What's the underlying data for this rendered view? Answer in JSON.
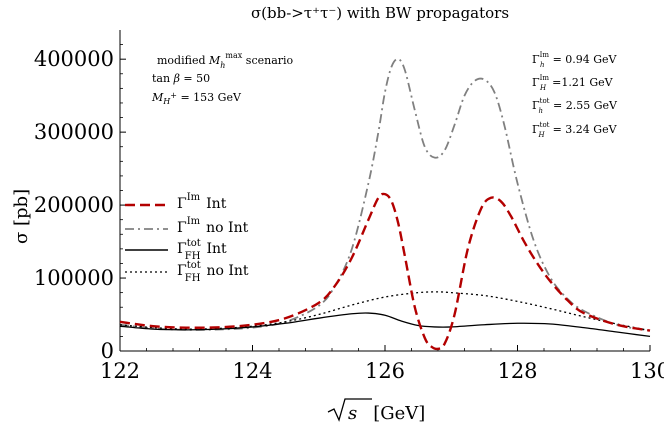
{
  "chart_data": {
    "type": "line",
    "title": "σ(bb->τ⁺τ⁻) with BW propagators",
    "xlabel": "√s [GeV]",
    "ylabel": "σ [pb]",
    "xlim": [
      122,
      130
    ],
    "ylim": [
      0,
      440000
    ],
    "x_ticks": [
      "122",
      "124",
      "126",
      "128",
      "130"
    ],
    "y_ticks": [
      "0",
      "100000",
      "200000",
      "300000",
      "400000"
    ],
    "x_tick_values": [
      122,
      124,
      126,
      128,
      130
    ],
    "y_tick_values": [
      0,
      100000,
      200000,
      300000,
      400000
    ],
    "annotations_left": {
      "scenario": "modified M_h^max scenario",
      "tan_beta": "tan β = 50",
      "mass": "M_H+ = 153 GeV"
    },
    "annotations_right": [
      "Γ_h^Im = 0.94 GeV",
      "Γ_H^Im = 1.21 GeV",
      "Γ_h^tot = 2.55 GeV",
      "Γ_H^tot = 3.24 GeV"
    ],
    "series": [
      {
        "name": "Γ^Im Int",
        "color": "#b30000",
        "dash": "long-dash",
        "x": [
          122,
          122.5,
          123,
          123.5,
          124,
          124.5,
          125,
          125.25,
          125.5,
          125.75,
          125.9,
          126.0,
          126.1,
          126.2,
          126.3,
          126.45,
          126.6,
          126.7,
          126.8,
          126.9,
          127.05,
          127.25,
          127.45,
          127.6,
          127.75,
          127.9,
          128.1,
          128.3,
          128.5,
          128.75,
          129,
          129.5,
          130
        ],
        "values": [
          40000,
          34000,
          32000,
          32500,
          36000,
          45000,
          66000,
          90000,
          128000,
          180000,
          210000,
          215000,
          205000,
          175000,
          130000,
          60000,
          18000,
          6000,
          3000,
          10000,
          50000,
          140000,
          195000,
          210000,
          205000,
          185000,
          150000,
          120000,
          95000,
          70000,
          52000,
          36000,
          28000
        ]
      },
      {
        "name": "Γ^Im no Int",
        "color": "#808080",
        "dash": "dash-dot",
        "x": [
          122,
          122.5,
          123,
          123.5,
          124,
          124.5,
          125,
          125.25,
          125.5,
          125.75,
          125.9,
          126.0,
          126.1,
          126.2,
          126.3,
          126.45,
          126.6,
          126.75,
          126.9,
          127.05,
          127.2,
          127.35,
          127.5,
          127.65,
          127.8,
          128.0,
          128.25,
          128.5,
          128.75,
          129,
          129.5,
          130
        ],
        "values": [
          36000,
          31000,
          29000,
          29500,
          32000,
          40000,
          62000,
          90000,
          140000,
          230000,
          300000,
          355000,
          390000,
          400000,
          385000,
          330000,
          280000,
          265000,
          275000,
          310000,
          350000,
          370000,
          372000,
          355000,
          310000,
          230000,
          150000,
          100000,
          72000,
          55000,
          36000,
          28000
        ]
      },
      {
        "name": "Γ_FH^tot Int",
        "color": "#000000",
        "dash": "solid",
        "x": [
          122,
          122.5,
          123,
          123.5,
          124,
          124.5,
          125,
          125.5,
          125.75,
          126.0,
          126.25,
          126.5,
          126.75,
          127,
          127.5,
          128,
          128.5,
          129,
          129.5,
          130
        ],
        "values": [
          34000,
          30000,
          29000,
          30000,
          33000,
          38000,
          45000,
          51000,
          52000,
          49000,
          41000,
          35000,
          33000,
          33000,
          36000,
          38000,
          37000,
          32000,
          26000,
          20000
        ]
      },
      {
        "name": "Γ_FH^tot no Int",
        "color": "#000000",
        "dash": "dotted",
        "x": [
          122,
          122.5,
          123,
          123.5,
          124,
          124.5,
          125,
          125.5,
          126,
          126.5,
          126.8,
          127,
          127.5,
          128,
          128.5,
          129,
          129.5,
          130
        ],
        "values": [
          36000,
          32000,
          30000,
          31000,
          34000,
          40000,
          50000,
          63000,
          74000,
          80000,
          81000,
          80000,
          76000,
          68000,
          58000,
          47000,
          37000,
          28000
        ]
      }
    ],
    "legend_position": "center-left"
  }
}
